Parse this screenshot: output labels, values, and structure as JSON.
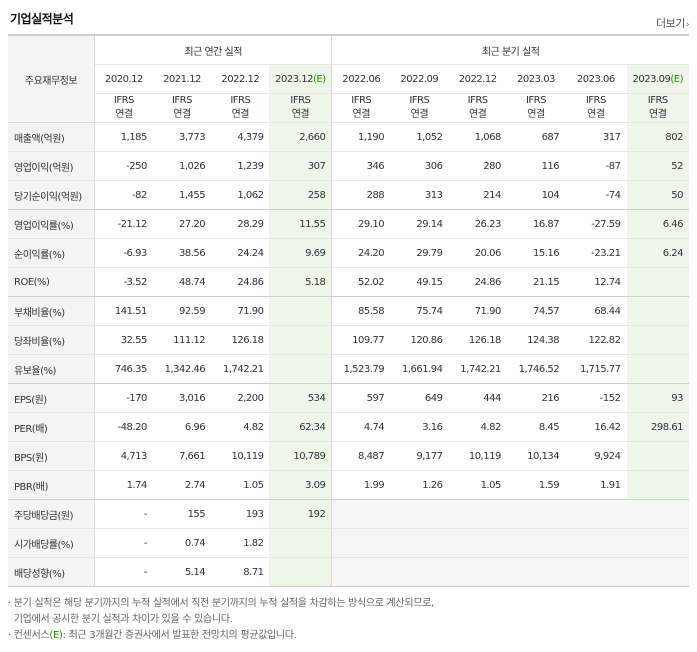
{
  "title": "기업실적분석",
  "more_label": "더보기",
  "header": {
    "corner_label": "주요재무정보",
    "annual_group": "최근 연간 실적",
    "quarter_group": "최근 분기 실적",
    "annual_periods": [
      "2020.12",
      "2021.12",
      "2022.12",
      "2023.12"
    ],
    "quarter_periods": [
      "2022.06",
      "2022.09",
      "2022.12",
      "2023.03",
      "2023.06",
      "2023.09"
    ],
    "estimate_mark": "(E)",
    "ifrs_label": "IFRS",
    "consol_label": "연결"
  },
  "rows": [
    {
      "label": "매출액(억원)",
      "annual": [
        "1,185",
        "3,773",
        "4,379",
        "2,660"
      ],
      "quarter": [
        "1,190",
        "1,052",
        "1,068",
        "687",
        "317",
        "802"
      ]
    },
    {
      "label": "영업이익(억원)",
      "annual": [
        "-250",
        "1,026",
        "1,239",
        "307"
      ],
      "quarter": [
        "346",
        "306",
        "280",
        "116",
        "-87",
        "52"
      ]
    },
    {
      "label": "당기순이익(억원)",
      "annual": [
        "-82",
        "1,455",
        "1,062",
        "258"
      ],
      "quarter": [
        "288",
        "313",
        "214",
        "104",
        "-74",
        "50"
      ]
    },
    {
      "label": "영업이익률(%)",
      "annual": [
        "-21.12",
        "27.20",
        "28.29",
        "11.55"
      ],
      "quarter": [
        "29.10",
        "29.14",
        "26.23",
        "16.87",
        "-27.59",
        "6.46"
      ]
    },
    {
      "label": "순이익률(%)",
      "annual": [
        "-6.93",
        "38.56",
        "24.24",
        "9.69"
      ],
      "quarter": [
        "24.20",
        "29.79",
        "20.06",
        "15.16",
        "-23.21",
        "6.24"
      ]
    },
    {
      "label": "ROE(%)",
      "annual": [
        "-3.52",
        "48.74",
        "24.86",
        "5.18"
      ],
      "quarter": [
        "52.02",
        "49.15",
        "24.86",
        "21.15",
        "12.74",
        ""
      ]
    },
    {
      "label": "부채비율(%)",
      "annual": [
        "141.51",
        "92.59",
        "71.90",
        ""
      ],
      "quarter": [
        "85.58",
        "75.74",
        "71.90",
        "74.57",
        "68.44",
        ""
      ]
    },
    {
      "label": "당좌비율(%)",
      "annual": [
        "32.55",
        "111.12",
        "126.18",
        ""
      ],
      "quarter": [
        "109.77",
        "120.86",
        "126.18",
        "124.38",
        "122.82",
        ""
      ]
    },
    {
      "label": "유보율(%)",
      "annual": [
        "746.35",
        "1,342.46",
        "1,742.21",
        ""
      ],
      "quarter": [
        "1,523.79",
        "1,661.94",
        "1,742.21",
        "1,746.52",
        "1,715.77",
        ""
      ]
    },
    {
      "label": "EPS(원)",
      "annual": [
        "-170",
        "3,016",
        "2,200",
        "534"
      ],
      "quarter": [
        "597",
        "649",
        "444",
        "216",
        "-152",
        "93"
      ]
    },
    {
      "label": "PER(배)",
      "annual": [
        "-48.20",
        "6.96",
        "4.82",
        "62.34"
      ],
      "quarter": [
        "4.74",
        "3.16",
        "4.82",
        "8.45",
        "16.42",
        "298.61"
      ]
    },
    {
      "label": "BPS(원)",
      "annual": [
        "4,713",
        "7,661",
        "10,119",
        "10,789"
      ],
      "quarter": [
        "8,487",
        "9,177",
        "10,119",
        "10,134",
        "9,924",
        ""
      ]
    },
    {
      "label": "PBR(배)",
      "annual": [
        "1.74",
        "2.74",
        "1.05",
        "3.09"
      ],
      "quarter": [
        "1.99",
        "1.26",
        "1.05",
        "1.59",
        "1.91",
        ""
      ]
    },
    {
      "label": "주당배당금(원)",
      "annual": [
        "-",
        "155",
        "193",
        "192"
      ],
      "quarter": []
    },
    {
      "label": "시가배당률(%)",
      "annual": [
        "-",
        "0.74",
        "1.82",
        ""
      ],
      "quarter": []
    },
    {
      "label": "배당성향(%)",
      "annual": [
        "-",
        "5.14",
        "8.71",
        ""
      ],
      "quarter": []
    }
  ],
  "notes": {
    "bullet": "·",
    "line1": "분기 실적은 해당 분기까지의 누적 실적에서 직전 분기까지의 누적 실적을 차감하는 방식으로 계산되므로,",
    "line2": "기업에서 공시한 분기 실적과 차이가 있을 수 있습니다.",
    "line3_pre": "컨센서스",
    "line3_mark": "(E)",
    "line3_post": ": 최근 3개월간 증권사에서 발표한 전망치의 평균값입니다."
  },
  "colors": {
    "negative": "#e13a3a",
    "ifrs": "#e0450e",
    "estimate_bg": "#eef6ea",
    "estimate_mark": "#2f8a10"
  }
}
